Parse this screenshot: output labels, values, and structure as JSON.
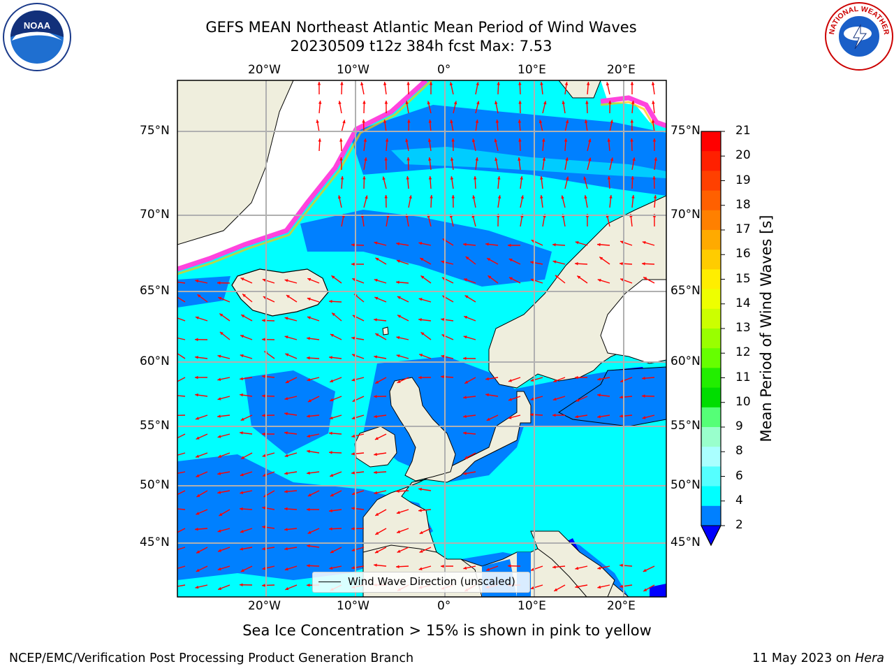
{
  "title_line1": "GEFS MEAN Northeast Atlantic Mean Period of Wind Waves",
  "title_line2": "20230509 t12z 384h fcst   Max: 7.53",
  "logos": {
    "left": "noaa-logo",
    "left_text": "NOAA",
    "right": "nws-logo",
    "right_text": "NATIONAL WEATHER SERVICE"
  },
  "map": {
    "lon_ticks": [
      "20°W",
      "10°W",
      "0°",
      "10°E",
      "20°E"
    ],
    "lat_ticks": [
      "75°N",
      "70°N",
      "65°N",
      "60°N",
      "55°N",
      "50°N",
      "45°N"
    ],
    "legend_label": "Wind Wave Direction (unscaled)",
    "colors": {
      "land": "#efeedd",
      "ice": "#ffffff",
      "period_2_4": "#0080ff",
      "period_4_6": "#00ffff",
      "arrows": "#ff0000",
      "grid": "#b0b0b0"
    }
  },
  "colorbar": {
    "title": "Mean Period of Wind Waves [s]",
    "labels": [
      "21",
      "20",
      "19",
      "18",
      "17",
      "16",
      "15",
      "14",
      "13",
      "12",
      "11",
      "10",
      "9",
      "8",
      "6",
      "4",
      "2"
    ],
    "colors": [
      "#ff0000",
      "#ff2000",
      "#ff4000",
      "#ff6000",
      "#ff8000",
      "#ffaa00",
      "#ffcc00",
      "#ffee00",
      "#eeff00",
      "#ccff00",
      "#99ff00",
      "#66ff00",
      "#22ee00",
      "#00dd00",
      "#55ff77",
      "#99ffcc",
      "#aaffff",
      "#55ffff",
      "#00ffff",
      "#0080ff"
    ],
    "extend_color": "#0000ff"
  },
  "bottom_note": "Sea Ice Concentration > 15% is shown in pink to yellow",
  "footer": {
    "left": "NCEP/EMC/Verification Post Processing Product Generation Branch",
    "right_prefix": "11 May 2023 on ",
    "right_host": "Hera"
  }
}
